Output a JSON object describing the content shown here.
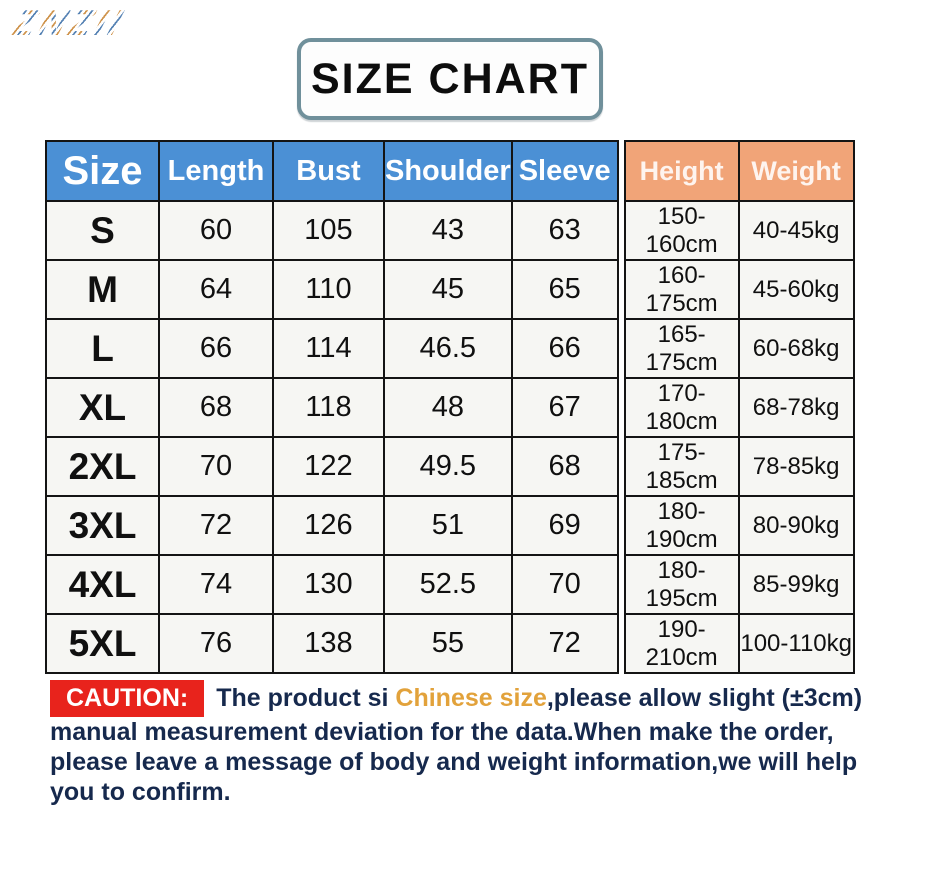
{
  "watermark": "ZNZII",
  "title": "SIZE CHART",
  "size_table": {
    "columns": [
      "Size",
      "Length",
      "Bust",
      "Shoulder",
      "Sleeve"
    ],
    "measure_columns": [
      "Height",
      "Weight"
    ],
    "rows": [
      [
        "S",
        "60",
        "105",
        "43",
        "63",
        "150-160cm",
        "40-45kg"
      ],
      [
        "M",
        "64",
        "110",
        "45",
        "65",
        "160-175cm",
        "45-60kg"
      ],
      [
        "L",
        "66",
        "114",
        "46.5",
        "66",
        "165-175cm",
        "60-68kg"
      ],
      [
        "XL",
        "68",
        "118",
        "48",
        "67",
        "170-180cm",
        "68-78kg"
      ],
      [
        "2XL",
        "70",
        "122",
        "49.5",
        "68",
        "175-185cm",
        "78-85kg"
      ],
      [
        "3XL",
        "72",
        "126",
        "51",
        "69",
        "180-190cm",
        "80-90kg"
      ],
      [
        "4XL",
        "74",
        "130",
        "52.5",
        "70",
        "180-195cm",
        "85-99kg"
      ],
      [
        "5XL",
        "76",
        "138",
        "55",
        "72",
        "190-210cm",
        "100-110kg"
      ]
    ]
  },
  "caution": {
    "label": "CAUTION:",
    "text_before_highlight": "The product si ",
    "highlight": "Chinese size",
    "text_after_highlight": ",please allow slight (±3cm) manual measurement deviation for the data.When make the order, please leave a message of body and weight information,we will help you to confirm."
  },
  "colors": {
    "header_blue": "#4b90d5",
    "header_orange": "#f1a478",
    "caution_red": "#e8231c",
    "highlight_gold": "#e2a23b",
    "caution_text": "#16294d",
    "title_border": "#70909b"
  }
}
